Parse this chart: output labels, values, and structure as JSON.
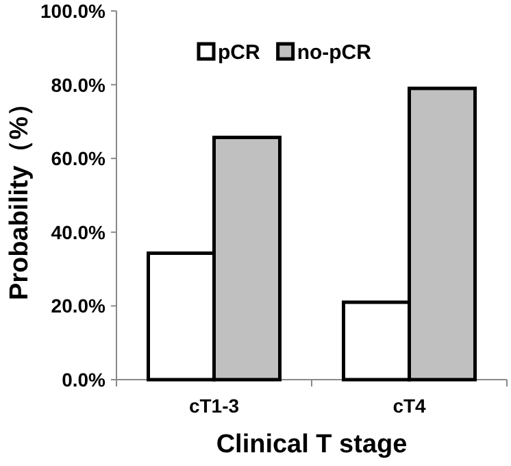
{
  "chart_data": {
    "type": "bar",
    "xlabel": "Clinical T stage",
    "ylabel": "Probability（%）",
    "categories": [
      "cT1-3",
      "cT4"
    ],
    "series": [
      {
        "name": "pCR",
        "color": "#ffffff",
        "values": [
          34.3,
          21.0
        ]
      },
      {
        "name": "no-pCR",
        "color": "#c0c0c0",
        "values": [
          65.7,
          79.0
        ]
      }
    ],
    "ylim": [
      0,
      100
    ],
    "yticks": [
      {
        "value": 0,
        "label": "0.0%"
      },
      {
        "value": 20,
        "label": "20.0%"
      },
      {
        "value": 40,
        "label": "40.0%"
      },
      {
        "value": 60,
        "label": "60.0%"
      },
      {
        "value": 80,
        "label": "80.0%"
      },
      {
        "value": 100,
        "label": "100.0%"
      }
    ],
    "legend": "top",
    "grid": false
  }
}
